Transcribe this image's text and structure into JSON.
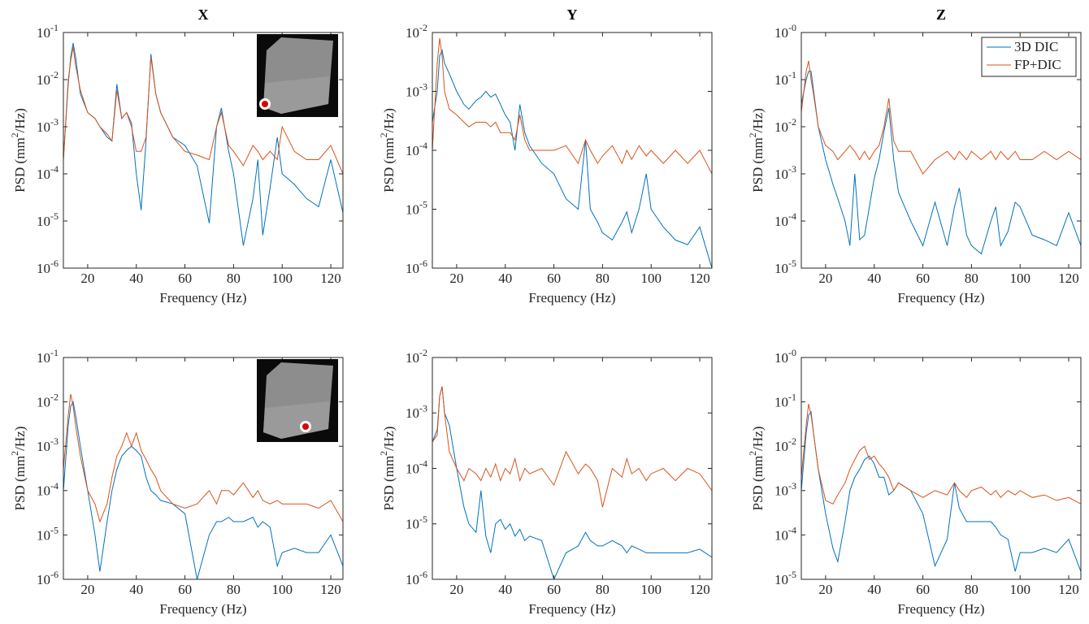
{
  "chart_data": [
    {
      "type": "line",
      "title": "X",
      "xlabel": "Frequency (Hz)",
      "ylabel": "PSD (mm^2/Hz)",
      "log_y": true,
      "xlim": [
        10,
        125
      ],
      "xticks": [
        20,
        40,
        60,
        80,
        100,
        120
      ],
      "ylim": [
        1e-06,
        0.1
      ],
      "yticks": [
        {
          "value": 1e-06,
          "label": "10^-6"
        },
        {
          "value": 1e-05,
          "label": "10^-5"
        },
        {
          "value": 0.0001,
          "label": "10^-4"
        },
        {
          "value": 0.001,
          "label": "10^-3"
        },
        {
          "value": 0.01,
          "label": "10^-2"
        },
        {
          "value": 0.1,
          "label": "10^-1"
        }
      ],
      "x": [
        10,
        12,
        13,
        14,
        15,
        17,
        20,
        23,
        25,
        28,
        30,
        32,
        34,
        36,
        38,
        40,
        42,
        44,
        46,
        48,
        50,
        55,
        60,
        65,
        70,
        73,
        75,
        78,
        80,
        84,
        88,
        90,
        92,
        95,
        98,
        100,
        105,
        110,
        115,
        120,
        125
      ],
      "series": [
        {
          "color": "#0072BD",
          "values": [
            0.0002,
            0.008,
            0.03,
            0.06,
            0.03,
            0.005,
            0.002,
            0.0015,
            0.001,
            0.0006,
            0.0005,
            0.008,
            0.0015,
            0.002,
            0.0012,
            0.0001,
            1.7e-05,
            0.0005,
            0.035,
            0.005,
            0.002,
            0.0006,
            0.0004,
            0.00015,
            9e-06,
            0.001,
            0.0025,
            0.0003,
            0.0001,
            3e-06,
            3e-05,
            0.0002,
            5e-06,
            5e-05,
            0.0006,
            0.0001,
            6e-05,
            3e-05,
            2e-05,
            0.0002,
            1.5e-05
          ]
        },
        {
          "color": "#D95319",
          "values": [
            0.0002,
            0.01,
            0.025,
            0.05,
            0.02,
            0.006,
            0.002,
            0.0015,
            0.001,
            0.0007,
            0.0005,
            0.006,
            0.0015,
            0.002,
            0.001,
            0.0003,
            0.0003,
            0.0006,
            0.03,
            0.005,
            0.002,
            0.0006,
            0.0003,
            0.00025,
            0.0002,
            0.001,
            0.002,
            0.0004,
            0.0003,
            0.00015,
            0.0004,
            0.0003,
            0.0002,
            0.0003,
            0.0002,
            0.001,
            0.0003,
            0.0002,
            0.0002,
            0.0004,
            0.0001
          ]
        }
      ]
    },
    {
      "type": "line",
      "title": "Y",
      "xlabel": "Frequency (Hz)",
      "ylabel": "PSD (mm^2/Hz)",
      "log_y": true,
      "xlim": [
        10,
        125
      ],
      "xticks": [
        20,
        40,
        60,
        80,
        100,
        120
      ],
      "ylim": [
        1e-06,
        0.01
      ],
      "yticks": [
        {
          "value": 1e-06,
          "label": "10^-6"
        },
        {
          "value": 1e-05,
          "label": "10^-5"
        },
        {
          "value": 0.0001,
          "label": "10^-4"
        },
        {
          "value": 0.001,
          "label": "10^-3"
        },
        {
          "value": 0.01,
          "label": "10^-2"
        }
      ],
      "x": [
        10,
        12,
        13,
        14,
        15,
        17,
        20,
        23,
        25,
        28,
        30,
        32,
        34,
        36,
        38,
        40,
        42,
        44,
        46,
        48,
        50,
        55,
        60,
        65,
        70,
        73,
        75,
        78,
        80,
        84,
        88,
        90,
        92,
        95,
        98,
        100,
        105,
        110,
        115,
        120,
        125
      ],
      "series": [
        {
          "color": "#0072BD",
          "values": [
            0.0003,
            0.001,
            0.004,
            0.005,
            0.003,
            0.002,
            0.001,
            0.0006,
            0.0005,
            0.0007,
            0.0008,
            0.001,
            0.0008,
            0.0009,
            0.0006,
            0.0004,
            0.0003,
            0.0001,
            0.0006,
            0.0002,
            0.00012,
            6e-05,
            4e-05,
            1.5e-05,
            1e-05,
            0.00015,
            1e-05,
            6e-06,
            4e-06,
            3e-06,
            6e-06,
            9e-06,
            4e-06,
            1e-05,
            4e-05,
            1e-05,
            5e-06,
            3e-06,
            2.5e-06,
            5e-06,
            1e-06
          ]
        },
        {
          "color": "#D95319",
          "values": [
            0.0001,
            0.003,
            0.008,
            0.004,
            0.001,
            0.0005,
            0.0004,
            0.0003,
            0.00025,
            0.0003,
            0.0003,
            0.0003,
            0.00025,
            0.0003,
            0.0002,
            0.0002,
            0.0002,
            0.00015,
            0.0004,
            0.00015,
            0.0001,
            0.0001,
            0.0001,
            0.00012,
            6e-05,
            0.00015,
            0.0001,
            6e-05,
            8e-05,
            0.00012,
            6e-05,
            0.0001,
            7e-05,
            0.00012,
            8e-05,
            0.0001,
            6e-05,
            0.0001,
            6e-05,
            0.0001,
            4e-05
          ]
        }
      ]
    },
    {
      "type": "line",
      "title": "Z",
      "xlabel": "Frequency (Hz)",
      "ylabel": "PSD (mm^2/Hz)",
      "log_y": true,
      "legend": "upper right",
      "xlim": [
        10,
        125
      ],
      "xticks": [
        20,
        40,
        60,
        80,
        100,
        120
      ],
      "ylim": [
        1e-05,
        1
      ],
      "yticks": [
        {
          "value": 1e-05,
          "label": "10^-5"
        },
        {
          "value": 0.0001,
          "label": "10^-4"
        },
        {
          "value": 0.001,
          "label": "10^-3"
        },
        {
          "value": 0.01,
          "label": "10^-2"
        },
        {
          "value": 0.1,
          "label": "10^-1"
        },
        {
          "value": 1,
          "label": "10^-0"
        }
      ],
      "x": [
        10,
        12,
        13,
        14,
        15,
        17,
        20,
        23,
        25,
        28,
        30,
        32,
        34,
        36,
        38,
        40,
        42,
        44,
        46,
        48,
        50,
        55,
        60,
        65,
        70,
        73,
        75,
        78,
        80,
        84,
        88,
        90,
        92,
        95,
        98,
        100,
        105,
        110,
        115,
        120,
        125
      ],
      "series": [
        {
          "name": "3D DIC",
          "color": "#0072BD",
          "values": [
            0.03,
            0.1,
            0.15,
            0.15,
            0.06,
            0.01,
            0.002,
            0.0006,
            0.0003,
            0.0001,
            3e-05,
            0.001,
            4e-05,
            5e-05,
            0.0002,
            0.0008,
            0.002,
            0.008,
            0.025,
            0.002,
            0.0004,
            0.0001,
            3e-05,
            0.00025,
            3e-05,
            0.0002,
            0.0005,
            5e-05,
            3e-05,
            2e-05,
            0.0001,
            0.0002,
            3e-05,
            6e-05,
            0.00025,
            0.0002,
            5e-05,
            4e-05,
            3e-05,
            0.00015,
            3e-05
          ]
        },
        {
          "name": "FP+DIC",
          "color": "#D95319",
          "values": [
            0.02,
            0.15,
            0.25,
            0.1,
            0.05,
            0.01,
            0.004,
            0.003,
            0.002,
            0.003,
            0.004,
            0.003,
            0.002,
            0.003,
            0.002,
            0.003,
            0.004,
            0.01,
            0.04,
            0.005,
            0.003,
            0.003,
            0.001,
            0.002,
            0.003,
            0.002,
            0.003,
            0.002,
            0.003,
            0.002,
            0.003,
            0.002,
            0.003,
            0.002,
            0.003,
            0.002,
            0.002,
            0.003,
            0.002,
            0.003,
            0.002
          ]
        }
      ]
    },
    {
      "type": "line",
      "xlabel": "Frequency (Hz)",
      "ylabel": "PSD (mm^2/Hz)",
      "log_y": true,
      "xlim": [
        10,
        125
      ],
      "xticks": [
        20,
        40,
        60,
        80,
        100,
        120
      ],
      "ylim": [
        1e-06,
        0.1
      ],
      "yticks": [
        {
          "value": 1e-06,
          "label": "10^-6"
        },
        {
          "value": 1e-05,
          "label": "10^-5"
        },
        {
          "value": 0.0001,
          "label": "10^-4"
        },
        {
          "value": 0.001,
          "label": "10^-3"
        },
        {
          "value": 0.01,
          "label": "10^-2"
        },
        {
          "value": 0.1,
          "label": "10^-1"
        }
      ],
      "x": [
        10,
        12,
        13,
        14,
        15,
        17,
        20,
        23,
        25,
        28,
        30,
        32,
        34,
        36,
        38,
        40,
        42,
        44,
        46,
        48,
        50,
        55,
        60,
        65,
        70,
        73,
        75,
        78,
        80,
        84,
        88,
        90,
        92,
        95,
        98,
        100,
        105,
        110,
        115,
        120,
        125
      ],
      "series": [
        {
          "color": "#0072BD",
          "values": [
            0.0001,
            0.003,
            0.008,
            0.01,
            0.005,
            0.001,
            0.0001,
            1e-05,
            1.5e-06,
            2e-05,
            0.0001,
            0.0003,
            0.0006,
            0.0008,
            0.001,
            0.0008,
            0.0006,
            0.0002,
            0.0001,
            8e-05,
            6e-05,
            5e-05,
            3e-05,
            1e-06,
            1e-05,
            2e-05,
            2e-05,
            2.5e-05,
            2e-05,
            2e-05,
            2.5e-05,
            1.5e-05,
            2e-05,
            1.5e-05,
            2e-06,
            4e-06,
            5e-06,
            4e-06,
            4e-06,
            1e-05,
            2e-06
          ]
        },
        {
          "color": "#D95319",
          "values": [
            0.0003,
            0.005,
            0.015,
            0.008,
            0.003,
            0.0006,
            0.0001,
            5e-05,
            2e-05,
            5e-05,
            0.0002,
            0.0006,
            0.001,
            0.002,
            0.001,
            0.002,
            0.0008,
            0.0005,
            0.0003,
            0.0002,
            0.0001,
            5e-05,
            4e-05,
            5e-05,
            0.0001,
            5e-05,
            0.0001,
            0.0001,
            8e-05,
            0.00015,
            7e-05,
            0.0001,
            6e-05,
            5e-05,
            6e-05,
            5e-05,
            5e-05,
            5e-05,
            4e-05,
            6e-05,
            2e-05
          ]
        }
      ]
    },
    {
      "type": "line",
      "xlabel": "Frequency (Hz)",
      "ylabel": "PSD (mm^2/Hz)",
      "log_y": true,
      "xlim": [
        10,
        125
      ],
      "xticks": [
        20,
        40,
        60,
        80,
        100,
        120
      ],
      "ylim": [
        1e-06,
        0.01
      ],
      "yticks": [
        {
          "value": 1e-06,
          "label": "10^-6"
        },
        {
          "value": 1e-05,
          "label": "10^-5"
        },
        {
          "value": 0.0001,
          "label": "10^-4"
        },
        {
          "value": 0.001,
          "label": "10^-3"
        },
        {
          "value": 0.01,
          "label": "10^-2"
        }
      ],
      "x": [
        10,
        12,
        13,
        14,
        15,
        17,
        20,
        23,
        25,
        28,
        30,
        32,
        34,
        36,
        38,
        40,
        42,
        44,
        46,
        48,
        50,
        55,
        60,
        65,
        70,
        73,
        75,
        78,
        80,
        84,
        88,
        90,
        92,
        95,
        98,
        100,
        105,
        110,
        115,
        120,
        125
      ],
      "series": [
        {
          "color": "#0072BD",
          "values": [
            0.0003,
            0.0005,
            0.002,
            0.003,
            0.001,
            0.0006,
            0.0001,
            2e-05,
            1e-05,
            7e-06,
            4e-05,
            6e-06,
            3e-06,
            1e-05,
            1.2e-05,
            8e-06,
            1e-05,
            6e-06,
            8e-06,
            5e-06,
            6e-06,
            5e-06,
            1e-06,
            3e-06,
            4e-06,
            7e-06,
            5e-06,
            4e-06,
            4e-06,
            5e-06,
            4e-06,
            3e-06,
            4e-06,
            3.5e-06,
            3e-06,
            3e-06,
            3e-06,
            3e-06,
            3e-06,
            3.5e-06,
            2.5e-06
          ]
        },
        {
          "color": "#D95319",
          "values": [
            0.0003,
            0.0004,
            0.002,
            0.003,
            0.001,
            0.0002,
            0.0001,
            6e-05,
            0.0001,
            8e-05,
            6e-05,
            0.0001,
            7e-05,
            0.00012,
            6e-05,
            0.0001,
            8e-05,
            0.00015,
            6e-05,
            0.0001,
            8e-05,
            0.0001,
            5e-05,
            0.0002,
            8e-05,
            0.00012,
            0.0001,
            6e-05,
            2e-05,
            0.0001,
            7e-05,
            0.00015,
            8e-05,
            0.0001,
            6e-05,
            8e-05,
            0.0001,
            6e-05,
            0.0001,
            8e-05,
            4e-05
          ]
        }
      ]
    },
    {
      "type": "line",
      "xlabel": "Frequency (Hz)",
      "ylabel": "PSD (mm^2/Hz)",
      "log_y": true,
      "xlim": [
        10,
        125
      ],
      "xticks": [
        20,
        40,
        60,
        80,
        100,
        120
      ],
      "ylim": [
        1e-05,
        1
      ],
      "yticks": [
        {
          "value": 1e-05,
          "label": "10^-5"
        },
        {
          "value": 0.0001,
          "label": "10^-4"
        },
        {
          "value": 0.001,
          "label": "10^-3"
        },
        {
          "value": 0.01,
          "label": "10^-2"
        },
        {
          "value": 0.1,
          "label": "10^-1"
        },
        {
          "value": 1,
          "label": "10^-0"
        }
      ],
      "x": [
        10,
        12,
        13,
        14,
        15,
        17,
        20,
        23,
        25,
        28,
        30,
        32,
        34,
        36,
        38,
        40,
        42,
        44,
        46,
        48,
        50,
        55,
        60,
        65,
        70,
        73,
        75,
        78,
        80,
        84,
        88,
        90,
        92,
        95,
        98,
        100,
        105,
        110,
        115,
        120,
        125
      ],
      "series": [
        {
          "color": "#0072BD",
          "values": [
            0.001,
            0.02,
            0.05,
            0.06,
            0.02,
            0.003,
            0.0003,
            5e-05,
            2.5e-05,
            0.0002,
            0.001,
            0.002,
            0.003,
            0.005,
            0.006,
            0.004,
            0.002,
            0.002,
            0.0008,
            0.001,
            0.0015,
            0.001,
            0.0003,
            2e-05,
            8e-05,
            0.0015,
            0.0004,
            0.0002,
            0.0002,
            0.0002,
            0.0002,
            0.00015,
            0.0001,
            8e-05,
            1.5e-05,
            4e-05,
            4e-05,
            5e-05,
            4e-05,
            8e-05,
            1.5e-05
          ]
        },
        {
          "color": "#D95319",
          "values": [
            0.002,
            0.03,
            0.09,
            0.05,
            0.02,
            0.003,
            0.0006,
            0.0005,
            0.0008,
            0.0015,
            0.003,
            0.005,
            0.008,
            0.01,
            0.005,
            0.006,
            0.004,
            0.003,
            0.002,
            0.001,
            0.0015,
            0.001,
            0.0007,
            0.001,
            0.0008,
            0.0015,
            0.001,
            0.0007,
            0.001,
            0.0012,
            0.0008,
            0.001,
            0.0007,
            0.001,
            0.0008,
            0.001,
            0.0007,
            0.0008,
            0.0006,
            0.0007,
            0.0005
          ]
        }
      ]
    }
  ]
}
